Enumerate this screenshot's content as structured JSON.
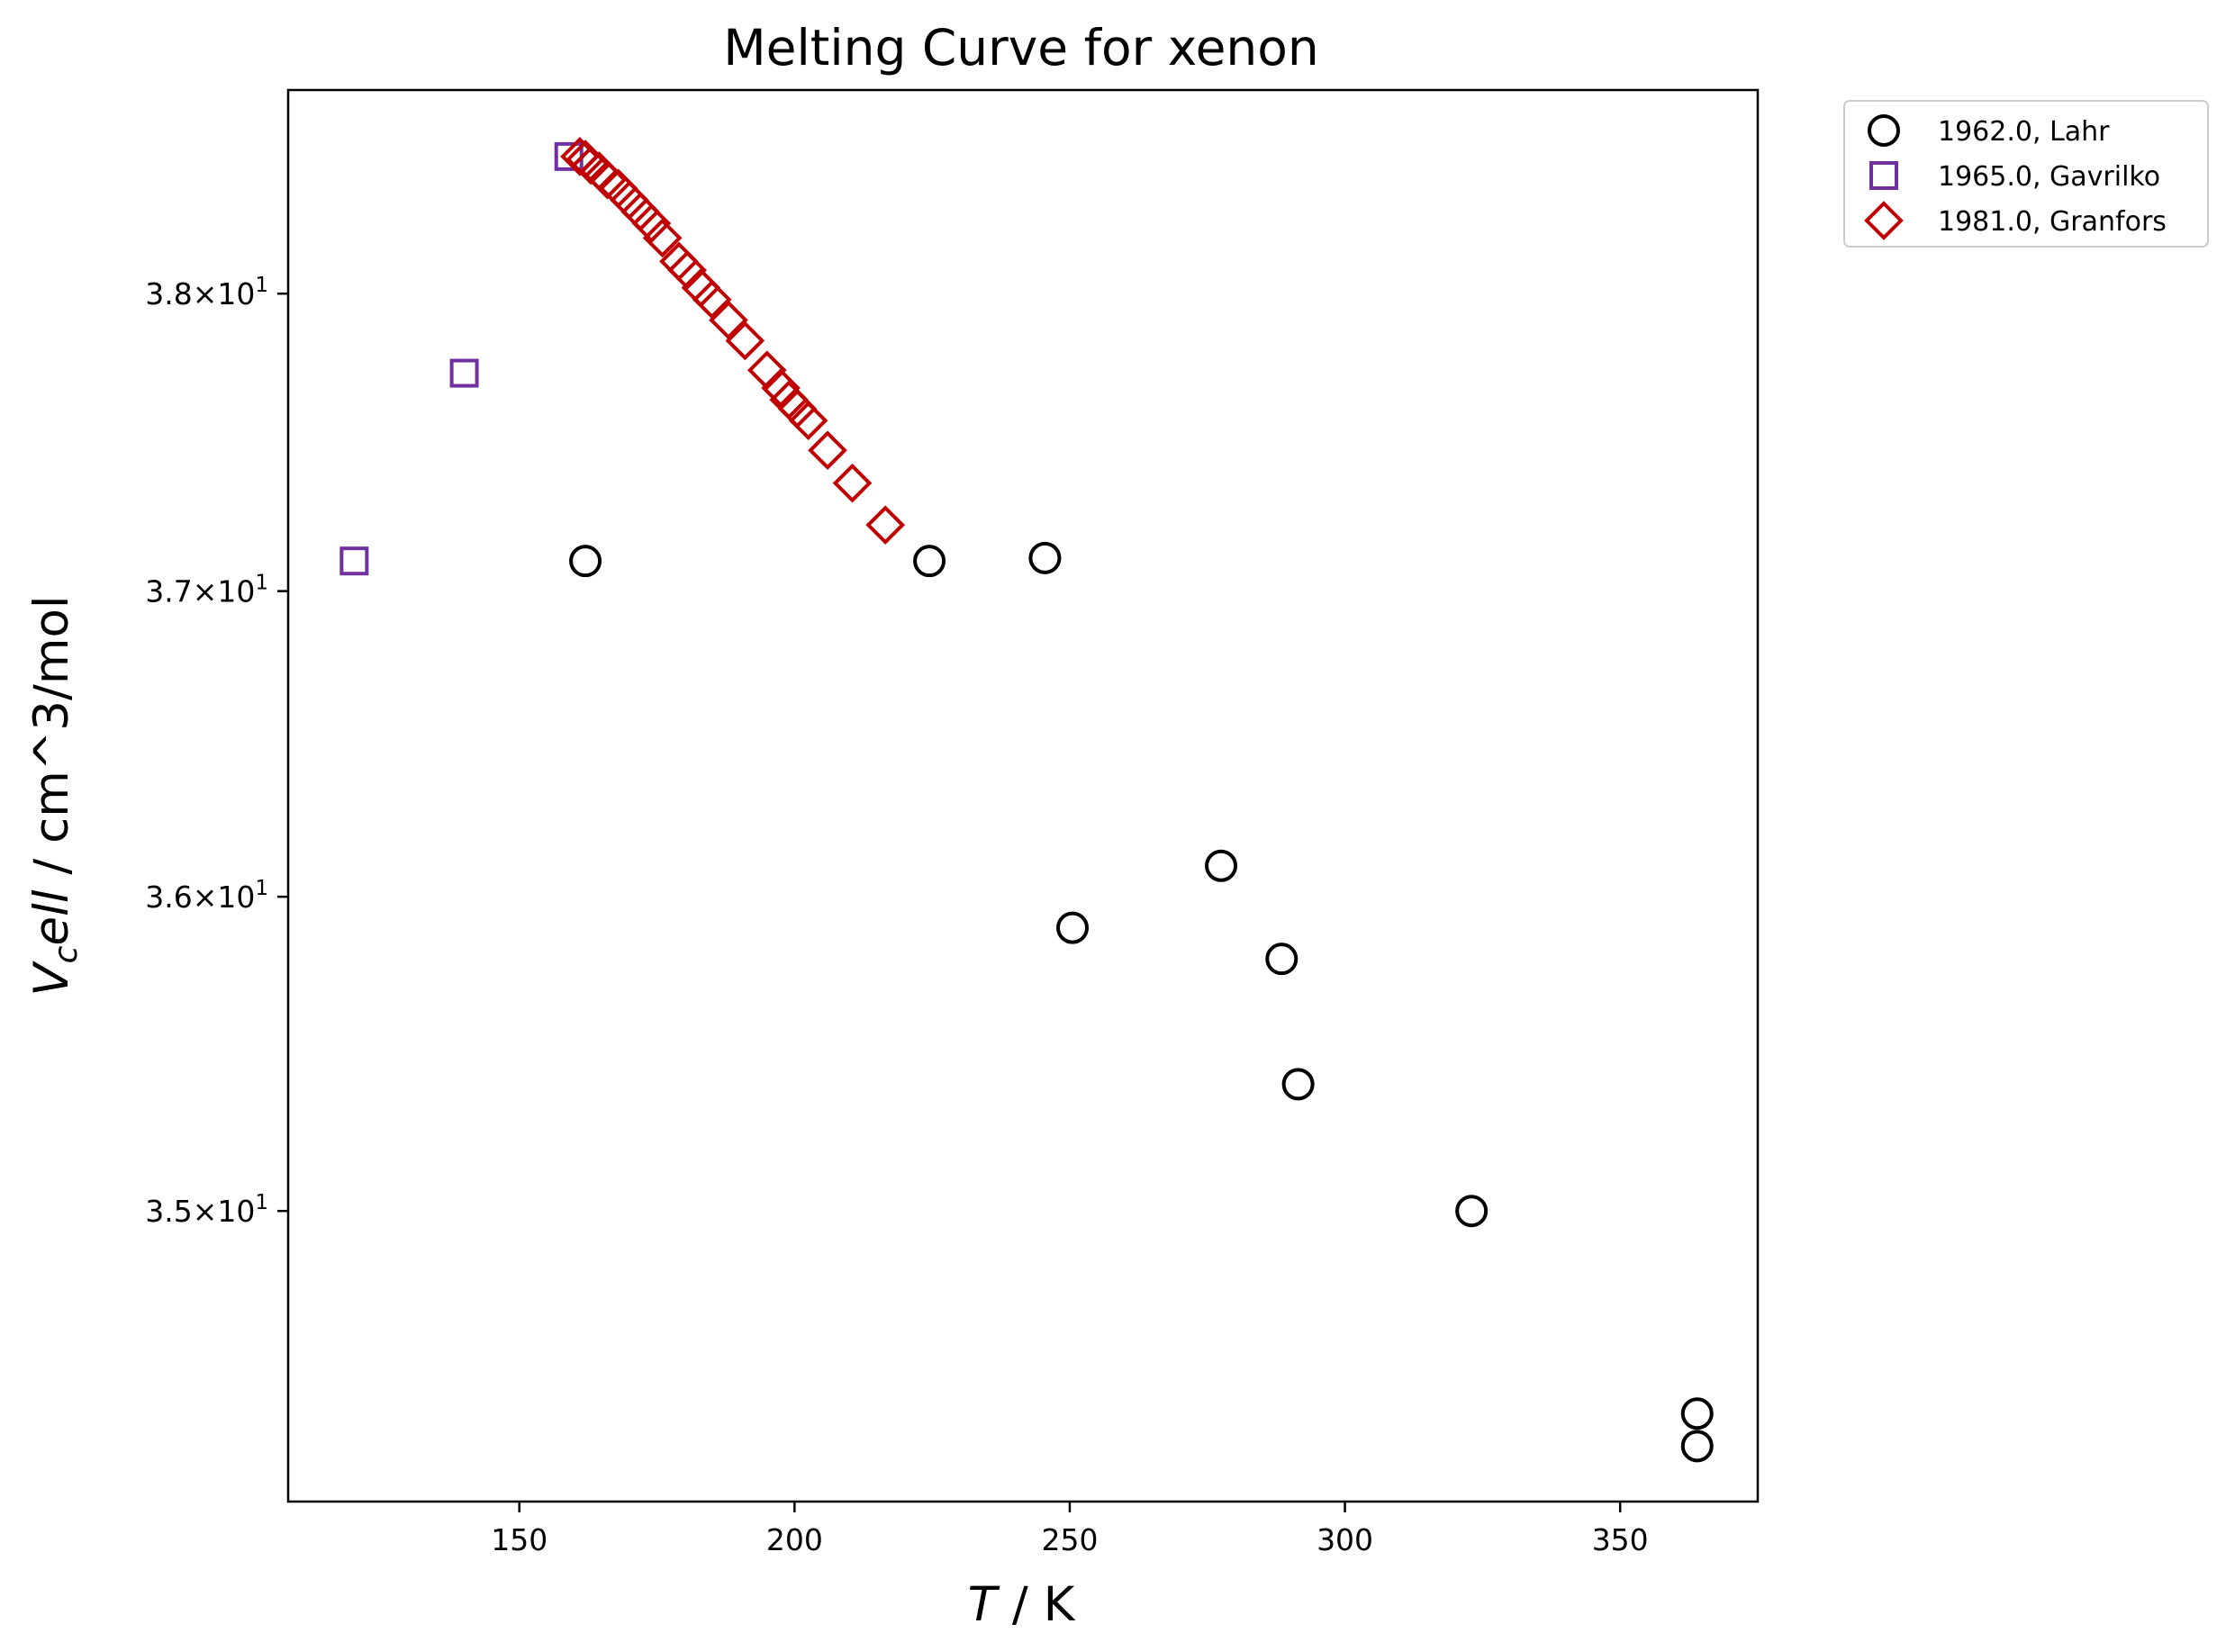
{
  "chart_data": {
    "type": "scatter",
    "title": "Melting Curve for xenon",
    "xlabel": {
      "italic": "T",
      "rest": " / K"
    },
    "ylabel": {
      "italic": "V",
      "sub": "c",
      "italic2": "ell",
      "rest": " / cm^3/mol"
    },
    "x_ticks": [
      "150",
      "200",
      "250",
      "300",
      "350"
    ],
    "x_tick_values": [
      150,
      200,
      250,
      300,
      350
    ],
    "y_ticks": [
      {
        "value": 35,
        "mantissa": "3.5",
        "base": "10",
        "exp": "1"
      },
      {
        "value": 36,
        "mantissa": "3.6",
        "base": "10",
        "exp": "1"
      },
      {
        "value": 37,
        "mantissa": "3.7",
        "base": "10",
        "exp": "1"
      },
      {
        "value": 38,
        "mantissa": "3.8",
        "base": "10",
        "exp": "1"
      }
    ],
    "xlim": [
      108,
      375
    ],
    "ylim": [
      34.1,
      38.7
    ],
    "yscale": "log",
    "legend_position": "outside-top-right",
    "series": [
      {
        "name": "1962.0, Lahr",
        "marker": "circle",
        "color": "#000000",
        "points": [
          [
            162,
            37.1
          ],
          [
            224.5,
            37.1
          ],
          [
            245.5,
            37.11
          ],
          [
            250.5,
            35.9
          ],
          [
            277.5,
            36.1
          ],
          [
            288.5,
            35.8
          ],
          [
            291.5,
            35.4
          ],
          [
            323,
            35.0
          ],
          [
            364,
            34.37
          ],
          [
            364,
            34.27
          ]
        ]
      },
      {
        "name": "1965.0, Gavrilko",
        "marker": "square",
        "color": "#7030a0",
        "points": [
          [
            120,
            37.1
          ],
          [
            140,
            37.73
          ],
          [
            159,
            38.47
          ]
        ]
      },
      {
        "name": "1981.0, Granfors",
        "marker": "diamond",
        "color": "#c00000",
        "points": [
          [
            161,
            38.47
          ],
          [
            162,
            38.46
          ],
          [
            163,
            38.44
          ],
          [
            164.5,
            38.42
          ],
          [
            166,
            38.39
          ],
          [
            168,
            38.36
          ],
          [
            170,
            38.32
          ],
          [
            172,
            38.28
          ],
          [
            174,
            38.24
          ],
          [
            176,
            38.19
          ],
          [
            179,
            38.11
          ],
          [
            180.5,
            38.08
          ],
          [
            183,
            38.02
          ],
          [
            185,
            37.98
          ],
          [
            188,
            37.91
          ],
          [
            191,
            37.84
          ],
          [
            195,
            37.74
          ],
          [
            197.5,
            37.68
          ],
          [
            199,
            37.64
          ],
          [
            200.5,
            37.61
          ],
          [
            202.5,
            37.57
          ],
          [
            206,
            37.47
          ],
          [
            210.5,
            37.36
          ],
          [
            216.5,
            37.22
          ]
        ]
      }
    ]
  }
}
